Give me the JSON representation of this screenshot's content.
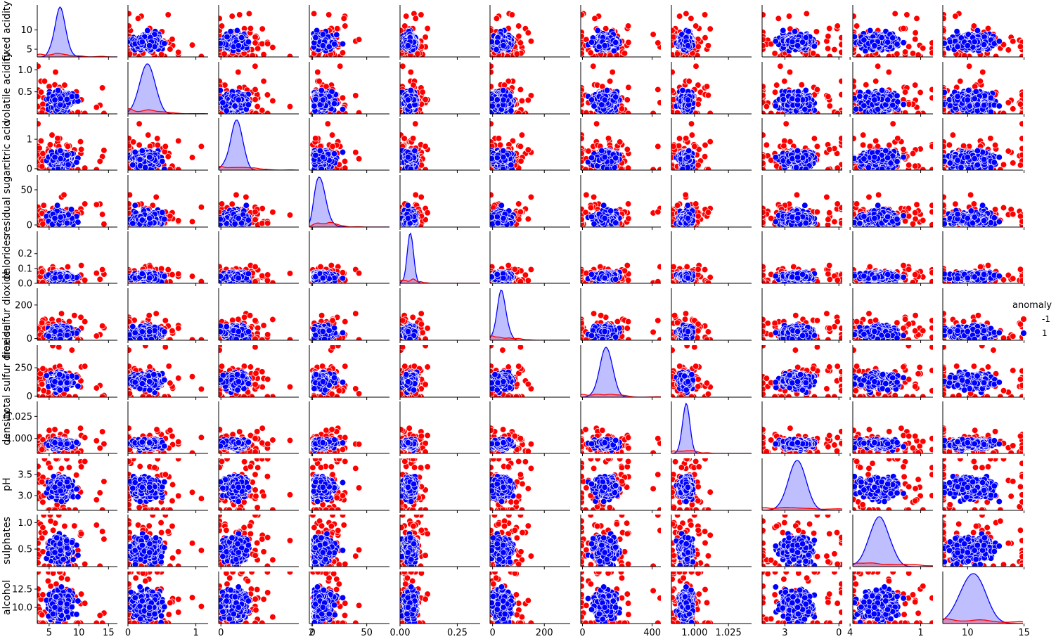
{
  "chart_data": {
    "type": "scatter",
    "subtype": "pairplot",
    "variables": [
      {
        "name": "fixed acidity",
        "range": [
          3.0,
          16.5
        ],
        "ticks": [
          5,
          10,
          15
        ],
        "tick_labels": [
          "5",
          "10",
          "15"
        ],
        "yticks": [
          5,
          10
        ],
        "ytick_labels": [
          "5",
          "10"
        ],
        "mean": 6.85,
        "sd": 0.84
      },
      {
        "name": "volatile acidity",
        "range": [
          0.0,
          1.18
        ],
        "ticks": [
          0,
          1
        ],
        "tick_labels": [
          "0",
          "1"
        ],
        "yticks": [
          0.5,
          1.0
        ],
        "ytick_labels": [
          "0.5",
          "1.0"
        ],
        "mean": 0.28,
        "sd": 0.1
      },
      {
        "name": "citric acid",
        "range": [
          -0.05,
          1.72
        ],
        "ticks": [
          0,
          2
        ],
        "tick_labels": [
          "0",
          "2"
        ],
        "yticks": [
          0,
          1
        ],
        "ytick_labels": [
          "0",
          "1"
        ],
        "mean": 0.33,
        "sd": 0.12
      },
      {
        "name": "residual sugar",
        "range": [
          -3,
          71
        ],
        "ticks": [
          0,
          50
        ],
        "tick_labels": [
          "0",
          "50"
        ],
        "yticks": [
          0,
          50
        ],
        "ytick_labels": [
          "0",
          "50"
        ],
        "mean": 6.4,
        "sd": 5.0
      },
      {
        "name": "chlorides",
        "range": [
          0.0,
          0.35
        ],
        "ticks": [
          0.0,
          0.25
        ],
        "tick_labels": [
          "0.00",
          "0.25"
        ],
        "yticks": [
          0.0,
          0.1,
          0.2
        ],
        "ytick_labels": [
          "0.0",
          "0.1",
          "0.2"
        ],
        "mean": 0.045,
        "sd": 0.012
      },
      {
        "name": "free sulfur dioxide",
        "range": [
          -10,
          300
        ],
        "ticks": [
          0,
          200
        ],
        "tick_labels": [
          "0",
          "200"
        ],
        "yticks": [
          0,
          200
        ],
        "ytick_labels": [
          "0",
          "200"
        ],
        "mean": 35,
        "sd": 16
      },
      {
        "name": "total sulfur dioxide",
        "range": [
          -10,
          450
        ],
        "ticks": [
          0,
          400
        ],
        "tick_labels": [
          "0",
          "400"
        ],
        "yticks": [
          0,
          250
        ],
        "ytick_labels": [
          "0",
          "250"
        ],
        "mean": 138,
        "sd": 42
      },
      {
        "name": "density",
        "range": [
          0.983,
          1.042
        ],
        "ticks": [
          1.0,
          1.025
        ],
        "tick_labels": [
          "1.000",
          "1.025"
        ],
        "yticks": [
          1.0,
          1.025
        ],
        "ytick_labels": [
          "1.000",
          "1.025"
        ],
        "mean": 0.994,
        "sd": 0.003
      },
      {
        "name": "pH",
        "range": [
          2.65,
          3.88
        ],
        "ticks": [
          3,
          4
        ],
        "tick_labels": [
          "3",
          "4"
        ],
        "yticks": [
          3.0,
          3.5
        ],
        "ytick_labels": [
          "3.0",
          "3.5"
        ],
        "mean": 3.19,
        "sd": 0.15
      },
      {
        "name": "sulphates",
        "range": [
          0.17,
          1.15
        ],
        "ticks": [
          0,
          1
        ],
        "tick_labels": [
          "0",
          "1"
        ],
        "yticks": [
          0.5,
          1.0
        ],
        "ytick_labels": [
          "0.5",
          "1.0"
        ],
        "mean": 0.49,
        "sd": 0.11
      },
      {
        "name": "alcohol",
        "range": [
          7.8,
          14.9
        ],
        "ticks": [
          10,
          15
        ],
        "tick_labels": [
          "10",
          "15"
        ],
        "yticks": [
          10.0,
          12.5
        ],
        "ytick_labels": [
          "10.0",
          "12.5"
        ],
        "mean": 10.5,
        "sd": 1.2
      }
    ],
    "hue": {
      "title": "anomaly",
      "levels": [
        {
          "label": "-1",
          "color": "#ff0000"
        },
        {
          "label": "1",
          "color": "#0000ff"
        }
      ]
    },
    "diagonal": "kde",
    "legend_placement": "center-right",
    "grid": false
  }
}
